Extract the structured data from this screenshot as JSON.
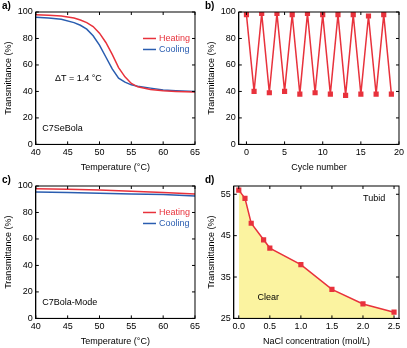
{
  "chart_data": [
    {
      "type": "line",
      "panel_label": "a)",
      "x_label": "Temperature (°C)",
      "y_label": "Transmittance (%)",
      "x": [
        40,
        42,
        44,
        46,
        47,
        48,
        49,
        50,
        51,
        52,
        53,
        54,
        55,
        56,
        58,
        60,
        62,
        65
      ],
      "series": [
        {
          "name": "Heating",
          "color": "#e8323c",
          "values": [
            98,
            97.5,
            97,
            95.5,
            94,
            92,
            89,
            84,
            77,
            68,
            58,
            51,
            46,
            43.5,
            41.5,
            40.5,
            40,
            39.5
          ]
        },
        {
          "name": "Cooling",
          "color": "#2a5db0",
          "values": [
            96,
            95.5,
            94.5,
            92,
            90,
            87,
            82,
            75,
            66,
            57,
            50,
            47,
            45,
            44,
            42.5,
            41,
            40.5,
            40
          ]
        }
      ],
      "xlim": [
        40,
        65
      ],
      "xticks": [
        40,
        45,
        50,
        55,
        60,
        65
      ],
      "ylim": [
        0,
        100
      ],
      "yticks": [
        0,
        20,
        40,
        60,
        80,
        100
      ],
      "grid": false,
      "legend": "upper right",
      "annotations": [
        {
          "text": "ΔT = 1.4 °C",
          "x": 43,
          "y": 50
        },
        {
          "text": "C7SeBola",
          "x": 41,
          "y": 12
        }
      ]
    },
    {
      "type": "line",
      "panel_label": "b)",
      "x_label": "Cycle number",
      "y_label": "Transmittance (%)",
      "x": [
        0,
        1,
        2,
        3,
        4,
        5,
        6,
        7,
        8,
        9,
        10,
        11,
        12,
        13,
        14,
        15,
        16,
        17,
        18,
        19
      ],
      "series": [
        {
          "color": "#e8323c",
          "marker": "square",
          "values": [
            98,
            40,
            99,
            39,
            99,
            40,
            98,
            38,
            99,
            39,
            98,
            38,
            98,
            37,
            98,
            38,
            97,
            38,
            98,
            38
          ]
        }
      ],
      "xlim": [
        -1,
        20
      ],
      "xticks": [
        0,
        5,
        10,
        15,
        20
      ],
      "ylim": [
        0,
        100
      ],
      "yticks": [
        0,
        20,
        40,
        60,
        80,
        100
      ],
      "grid": false
    },
    {
      "type": "line",
      "panel_label": "c)",
      "x_label": "Temperature (°C)",
      "y_label": "Transmittance (%)",
      "x": [
        40,
        45,
        50,
        55,
        60,
        65
      ],
      "series": [
        {
          "name": "Heating",
          "color": "#e8323c",
          "values": [
            98,
            97.5,
            97,
            96,
            95,
            94
          ]
        },
        {
          "name": "Cooling",
          "color": "#2a5db0",
          "values": [
            95.5,
            95,
            94.5,
            94,
            93.5,
            92.5
          ]
        }
      ],
      "xlim": [
        40,
        65
      ],
      "xticks": [
        40,
        45,
        50,
        55,
        60,
        65
      ],
      "ylim": [
        0,
        100
      ],
      "yticks": [
        0,
        20,
        40,
        60,
        80,
        100
      ],
      "grid": false,
      "legend": "upper right",
      "annotations": [
        {
          "text": "C7Bola-Mode",
          "x": 41,
          "y": 12
        }
      ]
    },
    {
      "type": "line",
      "panel_label": "d)",
      "x_label": "NaCl concentration (mol/L)",
      "y_label": "Transmittance (%)",
      "x": [
        0,
        0.1,
        0.2,
        0.4,
        0.5,
        1.0,
        1.5,
        2.0,
        2.5
      ],
      "series": [
        {
          "type": "area",
          "color": "#fbf3a0",
          "values": [
            56,
            54,
            48,
            44,
            42,
            38,
            32,
            28.5,
            26.5
          ]
        },
        {
          "color": "#e8323c",
          "marker": "square",
          "values": [
            56,
            54,
            48,
            44,
            42,
            38,
            32,
            28.5,
            26.5
          ]
        }
      ],
      "xlim": [
        -0.08,
        2.58
      ],
      "xticks": [
        {
          "value": 0,
          "label": "0.0"
        },
        {
          "value": 0.5,
          "label": "0.5"
        },
        {
          "value": 1,
          "label": "1.0"
        },
        {
          "value": 1.5,
          "label": "1.5"
        },
        {
          "value": 2,
          "label": "2.0"
        },
        {
          "value": 2.5,
          "label": "2.5"
        }
      ],
      "ylim": [
        25,
        57
      ],
      "yticks": [
        25,
        35,
        45,
        55
      ],
      "grid": false,
      "annotations": [
        {
          "text": "Tubid",
          "x": 2.0,
          "y": 54
        },
        {
          "text": "Clear",
          "x": 0.3,
          "y": 30
        }
      ]
    }
  ]
}
